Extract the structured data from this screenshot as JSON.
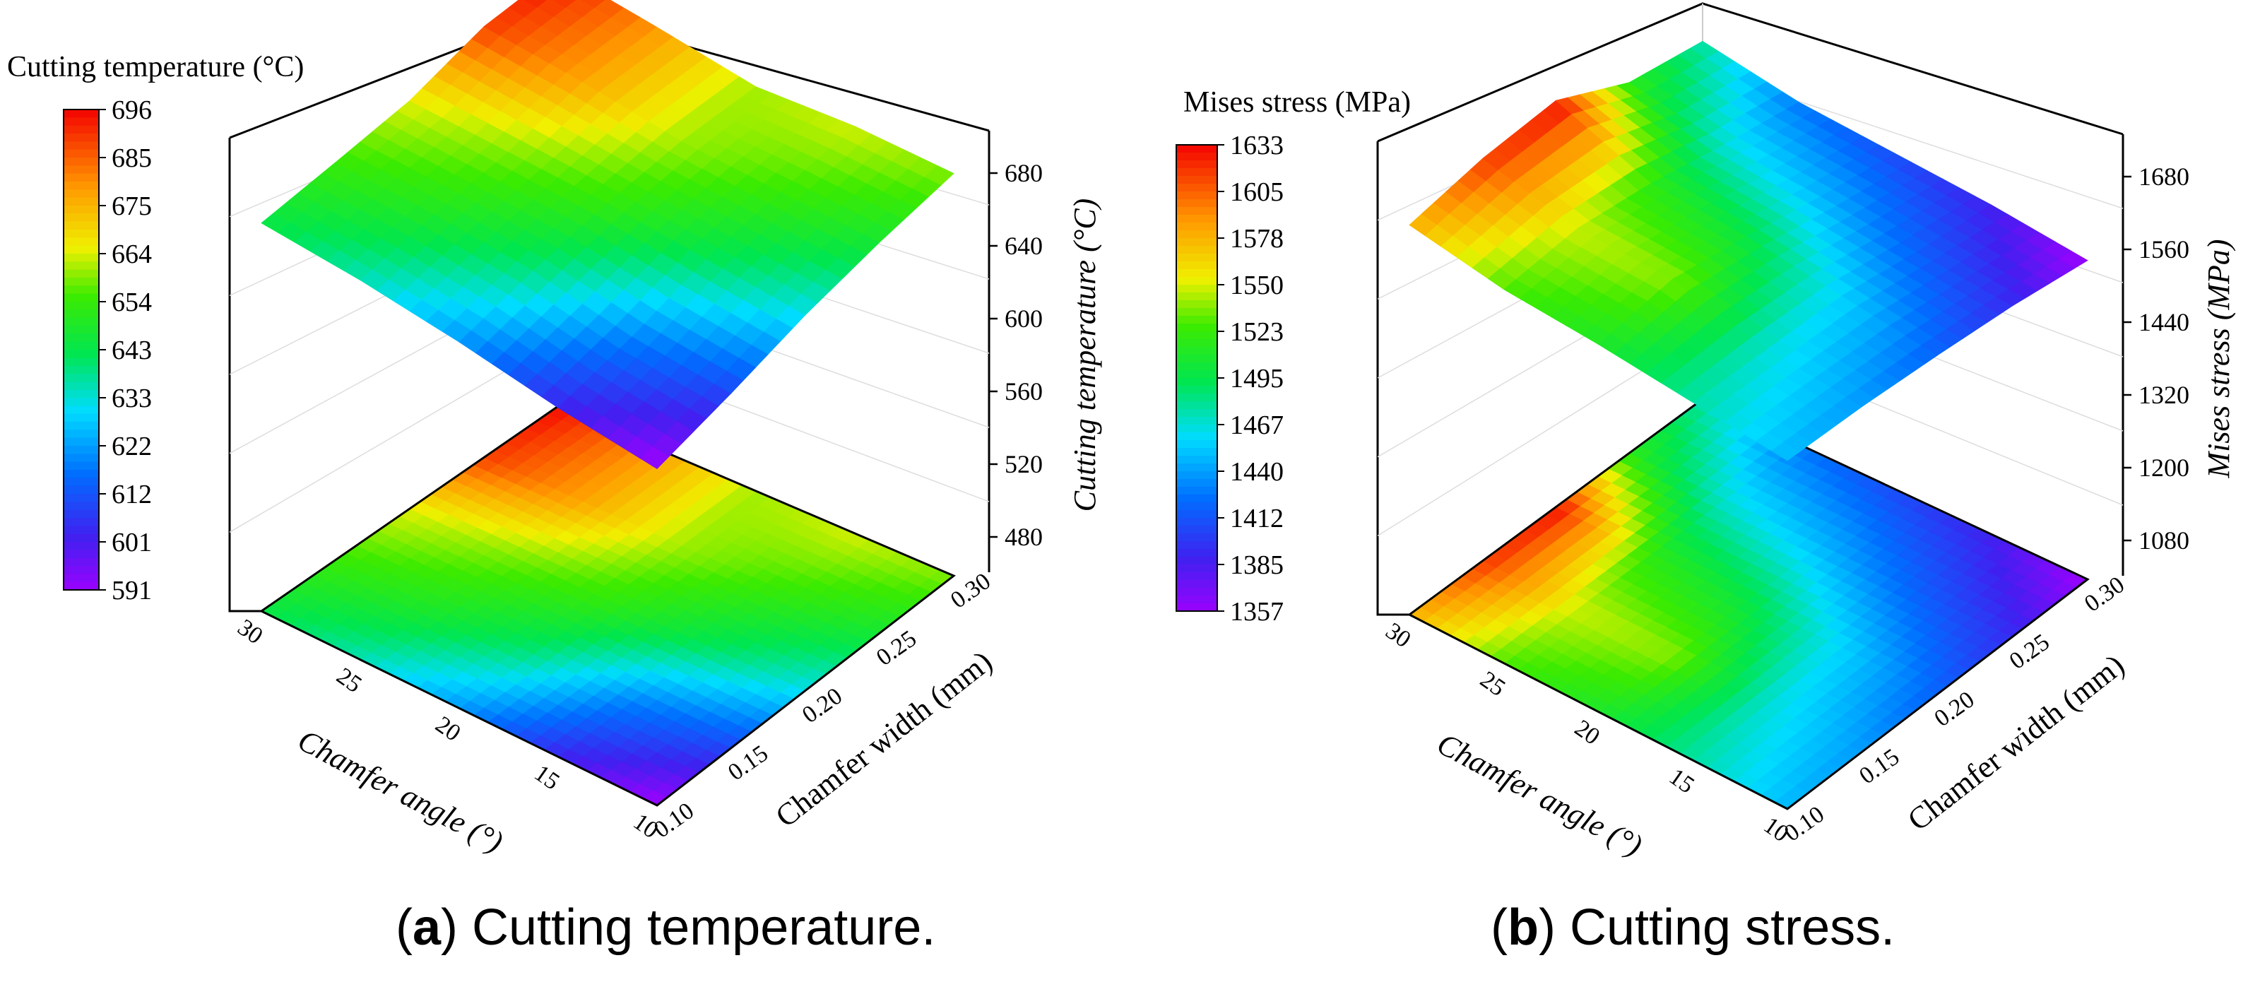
{
  "chart_data": [
    {
      "type": "surface3d",
      "caption_letter": "a",
      "caption_text": "Cutting temperature.",
      "colorbar_title": "Cutting temperature (°C)",
      "colorbar_ticks": [
        "696",
        "685",
        "675",
        "664",
        "654",
        "643",
        "633",
        "622",
        "612",
        "601",
        "591"
      ],
      "zlabel": "Cutting temperature (°C)",
      "zticks": [
        "680",
        "640",
        "600",
        "560",
        "520",
        "480"
      ],
      "zlim": [
        460,
        700
      ],
      "xlabel": "Chamfer angle (°)",
      "xticks": [
        "30",
        "25",
        "20",
        "15",
        "10"
      ],
      "ylabel": "Chamfer width (mm)",
      "yticks": [
        "0.30",
        "0.25",
        "0.20",
        "0.15",
        "0.10"
      ],
      "x": [
        10,
        15,
        20,
        25,
        30
      ],
      "y": [
        0.1,
        0.15,
        0.2,
        0.25,
        0.3
      ],
      "values": [
        [
          591,
          610,
          632,
          648,
          660
        ],
        [
          604,
          620,
          643,
          655,
          665
        ],
        [
          622,
          640,
          654,
          662,
          662
        ],
        [
          636,
          650,
          660,
          678,
          680
        ],
        [
          645,
          655,
          666,
          690,
          696
        ]
      ],
      "vmin": 591,
      "vmax": 696
    },
    {
      "type": "surface3d",
      "caption_letter": "b",
      "caption_text": "Cutting stress.",
      "colorbar_title": "Mises stress (MPa)",
      "colorbar_ticks": [
        "1633",
        "1605",
        "1578",
        "1550",
        "1523",
        "1495",
        "1467",
        "1440",
        "1412",
        "1385",
        "1357"
      ],
      "zlabel": "Mises stress (MPa)",
      "zticks": [
        "1680",
        "1560",
        "1440",
        "1320",
        "1200",
        "1080"
      ],
      "zlim": [
        1020,
        1740
      ],
      "xlabel": "Chamfer angle (°)",
      "xticks": [
        "30",
        "25",
        "20",
        "15",
        "10"
      ],
      "ylabel": "Chamfer width (mm)",
      "yticks": [
        "0.30",
        "0.25",
        "0.20",
        "0.15",
        "0.10"
      ],
      "x": [
        10,
        15,
        20,
        25,
        30
      ],
      "y": [
        0.1,
        0.15,
        0.2,
        0.25,
        0.3
      ],
      "values": [
        [
          1450,
          1440,
          1420,
          1395,
          1357
        ],
        [
          1480,
          1470,
          1460,
          1420,
          1390
        ],
        [
          1510,
          1540,
          1500,
          1450,
          1410
        ],
        [
          1530,
          1550,
          1520,
          1470,
          1430
        ],
        [
          1580,
          1620,
          1633,
          1520,
          1480
        ]
      ],
      "vmin": 1357,
      "vmax": 1633
    }
  ]
}
